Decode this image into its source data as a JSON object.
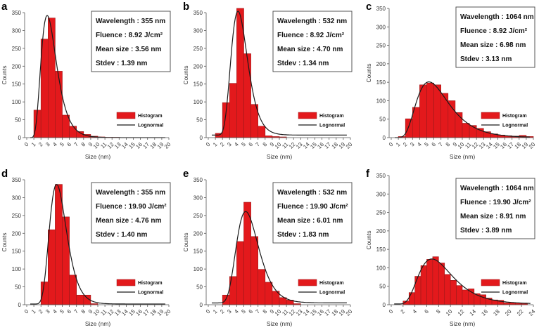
{
  "colors": {
    "bar": "#e3191c",
    "bar_edge": "#9b1a1a",
    "curve": "#1a1a1a",
    "axis": "#555555"
  },
  "chart_data": [
    {
      "type": "bar",
      "panel": "a",
      "xlabel": "Size (nm)",
      "ylabel": "Counts",
      "xlim": [
        0,
        20
      ],
      "ylim": [
        0,
        350
      ],
      "xticks": [
        0,
        1,
        2,
        3,
        4,
        5,
        6,
        7,
        8,
        9,
        10,
        11,
        12,
        13,
        14,
        15,
        16,
        17,
        18,
        19,
        20
      ],
      "yticks": [
        0,
        50,
        100,
        150,
        200,
        250,
        300,
        350
      ],
      "bin_width": 1,
      "bins_start": [
        1,
        2,
        3,
        4,
        5,
        6,
        7,
        8,
        9,
        10,
        11,
        12
      ],
      "values": [
        77,
        276,
        335,
        186,
        63,
        32,
        17,
        9,
        4,
        2,
        1,
        1
      ],
      "info": [
        "Wavelength : 355 nm",
        "Fluence : 8.92 J/cm²",
        "Mean size : 3.56 nm",
        "Stdev : 1.39 nm"
      ],
      "fit": {
        "mean": 3.56,
        "stdev": 1.39,
        "peak": 342,
        "baseline": 0
      },
      "legend": [
        "Histogram",
        "Lognormal"
      ]
    },
    {
      "type": "bar",
      "panel": "b",
      "xlabel": "Size (nm)",
      "ylabel": "Counts",
      "xlim": [
        0,
        20
      ],
      "ylim": [
        0,
        350
      ],
      "xticks": [
        0,
        1,
        2,
        3,
        4,
        5,
        6,
        7,
        8,
        9,
        10,
        11,
        12,
        13,
        14,
        15,
        16,
        17,
        18,
        19,
        20
      ],
      "yticks": [
        0,
        50,
        100,
        150,
        200,
        250,
        300,
        350
      ],
      "bin_width": 1,
      "bins_start": [
        1,
        2,
        3,
        4,
        5,
        6,
        7,
        8,
        9,
        10
      ],
      "values": [
        12,
        98,
        152,
        362,
        235,
        93,
        32,
        5,
        3,
        2
      ],
      "info": [
        "Wavelength : 532 nm",
        "Fluence : 8.92 J/cm²",
        "Mean size : 4.70 nm",
        "Stdev : 1.34 nm"
      ],
      "fit": {
        "mean": 4.7,
        "stdev": 1.34,
        "peak": 354,
        "baseline": 7
      },
      "legend": [
        "Histogram",
        "Lognormal"
      ]
    },
    {
      "type": "bar",
      "panel": "c",
      "xlabel": "Size (nm)",
      "ylabel": "Counts",
      "xlim": [
        0,
        20
      ],
      "ylim": [
        0,
        350
      ],
      "xticks": [
        0,
        1,
        2,
        3,
        4,
        5,
        6,
        7,
        8,
        9,
        10,
        11,
        12,
        13,
        14,
        15,
        16,
        17,
        18,
        19,
        20
      ],
      "yticks": [
        0,
        50,
        100,
        150,
        200,
        250,
        300,
        350
      ],
      "bin_width": 1,
      "bins_start": [
        1,
        2,
        3,
        4,
        5,
        6,
        7,
        8,
        9,
        10,
        11,
        12,
        13,
        14,
        15,
        16,
        17,
        18,
        19
      ],
      "values": [
        3,
        51,
        82,
        143,
        148,
        143,
        120,
        100,
        68,
        39,
        33,
        25,
        16,
        10,
        7,
        5,
        4,
        6,
        3
      ],
      "info": [
        "Wavelength : 1064 nm",
        "Fluence : 8.92 J/cm²",
        "Mean size : 6.98 nm",
        "Stdev : 3.13 nm"
      ],
      "fit": {
        "mean": 6.98,
        "stdev": 3.13,
        "peak": 151,
        "baseline": 0
      },
      "legend": [
        "Histogram",
        "Lognormal"
      ]
    },
    {
      "type": "bar",
      "panel": "d",
      "xlabel": "Size (nm)",
      "ylabel": "Counts",
      "xlim": [
        0,
        20
      ],
      "ylim": [
        0,
        350
      ],
      "xticks": [
        0,
        1,
        2,
        3,
        4,
        5,
        6,
        7,
        8,
        9,
        10,
        11,
        12,
        13,
        14,
        15,
        16,
        17,
        18,
        19,
        20
      ],
      "yticks": [
        0,
        50,
        100,
        150,
        200,
        250,
        300,
        350
      ],
      "bin_width": 1,
      "bins_start": [
        2,
        3,
        4,
        5,
        6,
        7,
        8,
        9
      ],
      "values": [
        64,
        210,
        337,
        246,
        83,
        27,
        27,
        3
      ],
      "info": [
        "Wavelength : 355 nm",
        "Fluence : 19.90 J/cm²",
        "Mean size : 4.76 nm",
        "Stdev : 1.40 nm"
      ],
      "fit": {
        "mean": 4.76,
        "stdev": 1.4,
        "peak": 337,
        "baseline": 2
      },
      "legend": [
        "Histogram",
        "Lognormal"
      ]
    },
    {
      "type": "bar",
      "panel": "e",
      "xlabel": "Size (nm)",
      "ylabel": "Counts",
      "xlim": [
        0,
        20
      ],
      "ylim": [
        0,
        350
      ],
      "xticks": [
        0,
        1,
        2,
        3,
        4,
        5,
        6,
        7,
        8,
        9,
        10,
        11,
        12,
        13,
        14,
        15,
        16,
        17,
        18,
        19,
        20
      ],
      "yticks": [
        0,
        50,
        100,
        150,
        200,
        250,
        300,
        350
      ],
      "bin_width": 1,
      "bins_start": [
        2,
        3,
        4,
        5,
        6,
        7,
        8,
        9,
        10,
        11,
        12
      ],
      "values": [
        27,
        79,
        177,
        287,
        191,
        99,
        63,
        38,
        20,
        13,
        3
      ],
      "info": [
        "Wavelength : 532 nm",
        "Fluence : 19.90 J/cm²",
        "Mean size : 6.01 nm",
        "Stdev : 1.83 nm"
      ],
      "fit": {
        "mean": 6.01,
        "stdev": 1.83,
        "peak": 261,
        "baseline": 5
      },
      "legend": [
        "Histogram",
        "Lognormal"
      ]
    },
    {
      "type": "bar",
      "panel": "f",
      "xlabel": "Size (nm)",
      "ylabel": "Counts",
      "xlim": [
        0,
        24
      ],
      "ylim": [
        0,
        350
      ],
      "xticks": [
        0,
        2,
        4,
        6,
        8,
        10,
        12,
        14,
        16,
        18,
        20,
        22,
        24
      ],
      "yticks": [
        0,
        50,
        100,
        150,
        200,
        250,
        300,
        350
      ],
      "bin_width": 1,
      "bins_start": [
        2,
        3,
        4,
        5,
        6,
        7,
        8,
        9,
        10,
        11,
        12,
        13,
        14,
        15,
        16,
        17,
        18,
        19,
        20,
        21,
        22
      ],
      "values": [
        10,
        33,
        77,
        106,
        123,
        130,
        113,
        82,
        66,
        52,
        40,
        43,
        30,
        27,
        18,
        13,
        12,
        5,
        6,
        5,
        3
      ],
      "info": [
        "Wavelength : 1064 nm",
        "Fluence : 19.90 J/cm²",
        "Mean size : 8.91 nm",
        "Stdev : 3.89 nm"
      ],
      "fit": {
        "mean": 8.91,
        "stdev": 3.89,
        "peak": 124,
        "baseline": 2
      },
      "legend": [
        "Histogram",
        "Lognormal"
      ]
    }
  ]
}
